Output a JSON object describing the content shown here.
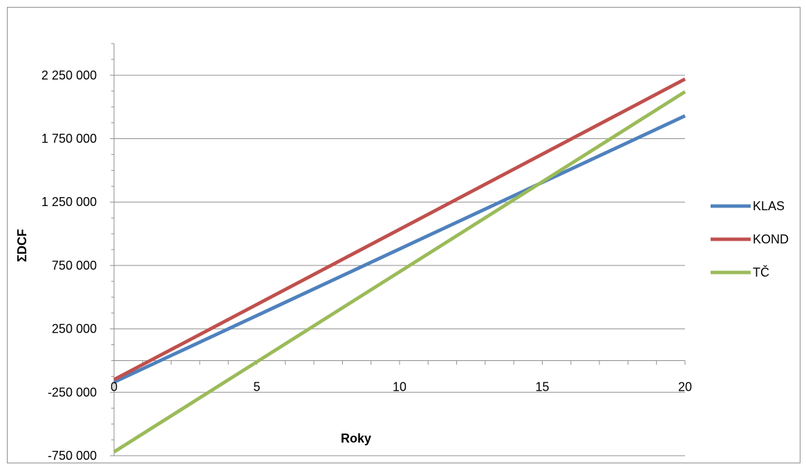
{
  "chart_data": {
    "type": "line",
    "title": "",
    "xlabel": "Roky",
    "ylabel": "ΣDCF",
    "xlim": [
      0,
      20
    ],
    "ylim": [
      -750000,
      2500000
    ],
    "x_ticks": [
      "0",
      "5",
      "10",
      "15",
      "20"
    ],
    "y_ticks": [
      "2 250 000",
      "1 750 000",
      "1 250 000",
      "750 000",
      "250 000",
      "-250 000",
      "-750 000"
    ],
    "y_tick_values": [
      2250000,
      1750000,
      1250000,
      750000,
      250000,
      -250000,
      -750000
    ],
    "grid": true,
    "legend_position": "right",
    "series": [
      {
        "name": "KLAS",
        "color": "#4f81bd",
        "x": [
          0,
          20
        ],
        "values": [
          -170000,
          1930000
        ]
      },
      {
        "name": "KOND",
        "color": "#c0504d",
        "x": [
          0,
          20
        ],
        "values": [
          -150000,
          2220000
        ]
      },
      {
        "name": "TČ",
        "color": "#9bbb59",
        "x": [
          0,
          20
        ],
        "values": [
          -720000,
          2120000
        ]
      }
    ]
  }
}
